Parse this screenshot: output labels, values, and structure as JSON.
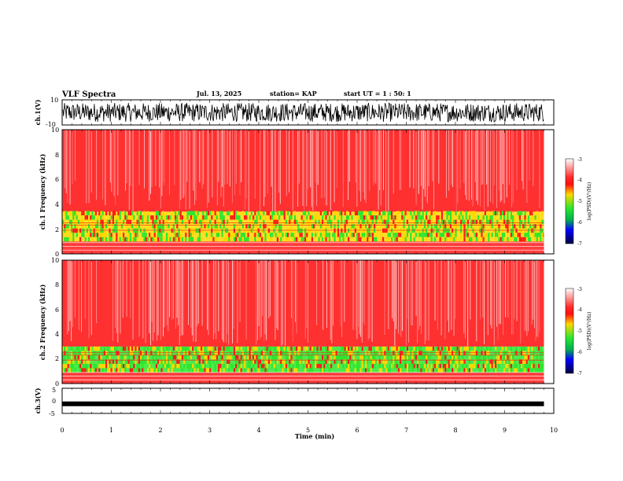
{
  "header": {
    "title": "VLF Spectra",
    "date": "Jul. 13, 2025",
    "station": "station= KAP",
    "start": "start UT =  1 : 50: 1"
  },
  "chart_data": [
    {
      "type": "line",
      "panel": "ch1-waveform",
      "ylabel": "ch.1(V)",
      "ylim": [
        -10,
        10
      ],
      "ytick_labels": [
        "10",
        "-10"
      ],
      "description_values": "dense waveform oscillating roughly between -8 and 8 V"
    },
    {
      "type": "heatmap",
      "panel": "ch1-spectrogram",
      "ylabel": "ch.1 Frequency (kHz)",
      "ylim": [
        0,
        10
      ],
      "ytick_labels": [
        "0",
        "2",
        "4",
        "6",
        "8",
        "10"
      ],
      "colorbar": {
        "label": "log(PSD)(V²/Hz)",
        "range": [
          -7,
          -3
        ],
        "tick_labels": [
          "-3",
          "-4",
          "-5",
          "-6",
          "-7"
        ]
      },
      "bands_khz": [
        {
          "from": 0,
          "to": 1.0,
          "level": -4.2
        },
        {
          "from": 1.0,
          "to": 3.4,
          "level": -4.6
        },
        {
          "from": 3.4,
          "to": 10,
          "level": -3.8
        }
      ]
    },
    {
      "type": "heatmap",
      "panel": "ch2-spectrogram",
      "ylabel": "ch.2 Frequency (kHz)",
      "ylim": [
        0,
        10
      ],
      "ytick_labels": [
        "0",
        "2",
        "4",
        "6",
        "8",
        "10"
      ],
      "colorbar": {
        "label": "log(PSD)(V²/Hz)",
        "range": [
          -7,
          -3
        ],
        "tick_labels": [
          "-3",
          "-4",
          "-5",
          "-6",
          "-7"
        ]
      },
      "bands_khz": [
        {
          "from": 0,
          "to": 0.9,
          "level": -4.2
        },
        {
          "from": 0.9,
          "to": 3.0,
          "level": -5.0
        },
        {
          "from": 3.0,
          "to": 10,
          "level": -3.8
        }
      ]
    },
    {
      "type": "line",
      "panel": "ch3-waveform",
      "ylabel": "ch.3(V)",
      "ylim": [
        -5,
        5
      ],
      "ytick_labels": [
        "5",
        "0",
        "-5"
      ],
      "baseline_v": -1.2
    }
  ],
  "xaxis": {
    "xlabel": "Time (min)",
    "xlim": [
      0,
      10
    ],
    "data_end": 9.8,
    "tick_labels": [
      "0",
      "1",
      "2",
      "3",
      "4",
      "5",
      "6",
      "7",
      "8",
      "9",
      "10"
    ]
  },
  "colors": {
    "red": "#ff1a1a",
    "white": "#ffffff",
    "yellow": "#ffd800",
    "green": "#2ee62e",
    "blue": "#0000c8",
    "navy": "#000040"
  }
}
